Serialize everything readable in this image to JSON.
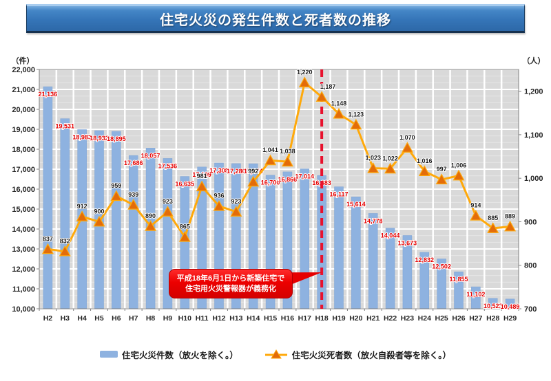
{
  "title": "住宅火災の発生件数と死者数の推移",
  "left_axis": {
    "unit": "（件）",
    "min": 10000,
    "max": 22000,
    "step": 1000,
    "tick_labels": [
      "22,000",
      "21,000",
      "20,000",
      "19,000",
      "18,000",
      "17,000",
      "16,000",
      "15,000",
      "14,000",
      "13,000",
      "12,000",
      "11,000",
      "10,000"
    ]
  },
  "right_axis": {
    "unit": "（人）",
    "min": 700,
    "max": 1250,
    "step": 100,
    "tick_labels": [
      "1,200",
      "1,100",
      "1,000",
      "900",
      "800",
      "700"
    ]
  },
  "annotation": {
    "line1": "平成18年6月1日から新築住宅で",
    "line2": "住宅用火災警報器が義務化",
    "attached_category": "H18"
  },
  "legend": {
    "fires_label": "住宅火災件数（放火を除く。）",
    "deaths_label": "住宅火災死者数（放火自殺者等を除く。）"
  },
  "colors": {
    "bar": "#8EB2E0",
    "bar_edge": "#7BA2D4",
    "line": "#FFA90A",
    "marker": "#E36C09",
    "marker_edge": "#FFA90A",
    "bar_label": "#E60000",
    "death_label": "#1A1A1A",
    "plot_bg": "#D9D9D9",
    "grid_major": "#FFFFFF",
    "grid_minor": "#E8E8E8",
    "axis": "#808080",
    "dashed_line": "#E8112D",
    "axis_text": "#262626"
  },
  "chart_data": {
    "type": "bar",
    "title": "住宅火災の発生件数と死者数の推移",
    "categories": [
      "H2",
      "H3",
      "H4",
      "H5",
      "H6",
      "H7",
      "H8",
      "H9",
      "H10",
      "H11",
      "H12",
      "H13",
      "H14",
      "H15",
      "H16",
      "H17",
      "H18",
      "H19",
      "H20",
      "H21",
      "H22",
      "H23",
      "H24",
      "H25",
      "H26",
      "H27",
      "H28",
      "H29"
    ],
    "series": [
      {
        "name": "住宅火災件数（放火を除く。）",
        "type": "bar",
        "axis": "left",
        "values": [
          21136,
          19531,
          18983,
          18932,
          18895,
          17686,
          18057,
          17536,
          16635,
          17109,
          17308,
          17280,
          17274,
          16700,
          16866,
          17014,
          16683,
          16117,
          15614,
          14778,
          14044,
          13673,
          12832,
          12502,
          11855,
          11102,
          10523,
          10489
        ]
      },
      {
        "name": "住宅火災死者数（放火自殺者等を除く。）",
        "type": "line",
        "axis": "right",
        "values": [
          837,
          832,
          912,
          900,
          959,
          939,
          890,
          923,
          865,
          981,
          936,
          923,
          992,
          1041,
          1038,
          1220,
          1187,
          1148,
          1123,
          1023,
          1022,
          1070,
          1016,
          997,
          1006,
          914,
          885,
          889
        ]
      }
    ],
    "xlabel": "",
    "ylabel_left": "（件）",
    "ylabel_right": "（人）",
    "ylim_left": [
      10000,
      22000
    ],
    "ylim_right": [
      700,
      1250
    ],
    "grid": true,
    "legend_position": "bottom",
    "vertical_marker_category": "H18"
  }
}
